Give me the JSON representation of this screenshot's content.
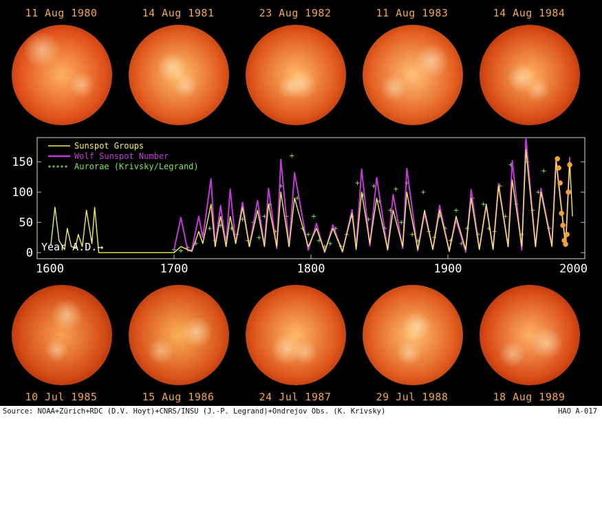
{
  "top_images": [
    {
      "date": "11 Aug 1980",
      "variant": 0
    },
    {
      "date": "14 Aug 1981",
      "variant": 1
    },
    {
      "date": "23 Aug 1982",
      "variant": 2
    },
    {
      "date": "11 Aug 1983",
      "variant": 3
    },
    {
      "date": "14 Aug 1984",
      "variant": 4
    }
  ],
  "bottom_images": [
    {
      "date": "10 Jul 1985",
      "variant": 5
    },
    {
      "date": "15 Aug 1986",
      "variant": 6
    },
    {
      "date": "24 Jul 1987",
      "variant": 7
    },
    {
      "date": "29 Jul 1988",
      "variant": 8
    },
    {
      "date": "18 Aug 1989",
      "variant": 9
    }
  ],
  "footer": {
    "source": "Source: NOAA+Zürich+RDC (D.V. Hoyt)+CNRS/INSU (J.-P. Legrand)+Ondrejov Obs. (K. Krivsky)",
    "code": "HAO A-017"
  },
  "colors": {
    "background": "#000000",
    "sunspot_groups": "#f2ee5a",
    "wolf_number": "#c23ad8",
    "aurorae": "#7ee35a",
    "highlight": "#f0a040",
    "label": "#f0a84a"
  },
  "chart_data": {
    "type": "line",
    "xlim": [
      1600,
      2000
    ],
    "ylim": [
      -10,
      190
    ],
    "x_ticks": [
      1600,
      1700,
      1800,
      1900,
      2000
    ],
    "y_ticks": [
      0,
      50,
      100,
      150
    ],
    "annotation": "Year A.D.→",
    "legend": {
      "placement": "top-left",
      "entries": [
        "Sunspot Groups",
        "Wolf Sunspot Number",
        "Aurorae (Krivsky/Legrand)"
      ]
    },
    "series": [
      {
        "name": "Sunspot Groups",
        "x": [
          1610,
          1613,
          1616,
          1620,
          1622,
          1625,
          1628,
          1630,
          1633,
          1636,
          1640,
          1642,
          1645,
          1650,
          1660,
          1670,
          1680,
          1690,
          1700,
          1705,
          1710,
          1713,
          1718,
          1721,
          1727,
          1730,
          1734,
          1738,
          1741,
          1745,
          1750,
          1755,
          1761,
          1766,
          1769,
          1775,
          1778,
          1784,
          1788,
          1798,
          1804,
          1810,
          1816,
          1823,
          1830,
          1833,
          1837,
          1843,
          1848,
          1856,
          1860,
          1867,
          1870,
          1878,
          1883,
          1889,
          1894,
          1901,
          1906,
          1913,
          1917,
          1923,
          1928,
          1933,
          1937,
          1944,
          1947,
          1954,
          1957,
          1964,
          1968,
          1976,
          1979,
          1986,
          1989,
          1991
        ],
        "y": [
          12,
          75,
          20,
          5,
          40,
          10,
          8,
          30,
          10,
          70,
          15,
          75,
          0,
          0,
          0,
          0,
          0,
          0,
          0,
          10,
          5,
          2,
          35,
          15,
          80,
          10,
          60,
          10,
          60,
          15,
          75,
          10,
          70,
          10,
          80,
          10,
          100,
          10,
          90,
          10,
          40,
          2,
          40,
          2,
          65,
          5,
          100,
          15,
          90,
          5,
          70,
          10,
          100,
          5,
          70,
          5,
          70,
          2,
          60,
          5,
          90,
          5,
          80,
          5,
          110,
          10,
          120,
          10,
          170,
          10,
          100,
          10,
          150,
          10,
          150,
          60
        ]
      },
      {
        "name": "Wolf Sunspot Number",
        "x": [
          1700,
          1705,
          1710,
          1713,
          1718,
          1721,
          1727,
          1730,
          1734,
          1738,
          1741,
          1745,
          1750,
          1755,
          1761,
          1766,
          1769,
          1775,
          1778,
          1784,
          1788,
          1798,
          1804,
          1810,
          1816,
          1823,
          1830,
          1833,
          1837,
          1843,
          1848,
          1856,
          1860,
          1867,
          1870,
          1878,
          1883,
          1889,
          1894,
          1901,
          1906,
          1913,
          1917,
          1923,
          1928,
          1933,
          1937,
          1944,
          1947,
          1954,
          1957,
          1964,
          1968,
          1976,
          1979,
          1986,
          1989
        ],
        "y": [
          5,
          58,
          3,
          5,
          60,
          25,
          122,
          11,
          78,
          11,
          105,
          15,
          83,
          10,
          86,
          12,
          106,
          7,
          154,
          10,
          132,
          4,
          48,
          0,
          46,
          1,
          71,
          9,
          138,
          11,
          124,
          4,
          96,
          7,
          139,
          3,
          64,
          6,
          78,
          3,
          54,
          1,
          104,
          6,
          78,
          6,
          114,
          10,
          152,
          4,
          190,
          10,
          106,
          13,
          155,
          13,
          158
        ]
      },
      {
        "name": "Aurorae (Krivsky/Legrand)",
        "x": [
          1700,
          1705,
          1710,
          1716,
          1721,
          1726,
          1730,
          1734,
          1738,
          1742,
          1746,
          1750,
          1754,
          1758,
          1762,
          1766,
          1770,
          1774,
          1778,
          1782,
          1786,
          1790,
          1794,
          1798,
          1802,
          1806,
          1810,
          1814,
          1818,
          1822,
          1826,
          1830,
          1834,
          1838,
          1842,
          1846,
          1850,
          1854,
          1858,
          1862,
          1866,
          1870,
          1874,
          1878,
          1882,
          1886,
          1890,
          1894,
          1898,
          1902,
          1906,
          1910,
          1914,
          1918,
          1922,
          1926,
          1930,
          1934,
          1938,
          1942,
          1946,
          1950,
          1954,
          1958,
          1962,
          1966,
          1970,
          1974
        ],
        "y": [
          5,
          3,
          8,
          15,
          30,
          40,
          20,
          45,
          25,
          40,
          30,
          55,
          20,
          50,
          25,
          60,
          80,
          35,
          110,
          60,
          160,
          90,
          40,
          30,
          60,
          20,
          10,
          15,
          40,
          10,
          30,
          60,
          115,
          95,
          55,
          110,
          85,
          40,
          70,
          105,
          50,
          115,
          30,
          20,
          100,
          35,
          25,
          60,
          40,
          20,
          70,
          15,
          40,
          90,
          30,
          80,
          40,
          35,
          110,
          60,
          145,
          80,
          30,
          150,
          70,
          100,
          135,
          40
        ]
      },
      {
        "name": "",
        "x": [
          1980,
          1981,
          1982,
          1983,
          1984,
          1985,
          1986,
          1987,
          1988,
          1989
        ],
        "y": [
          155,
          140,
          115,
          65,
          45,
          20,
          14,
          30,
          100,
          145
        ]
      }
    ]
  }
}
